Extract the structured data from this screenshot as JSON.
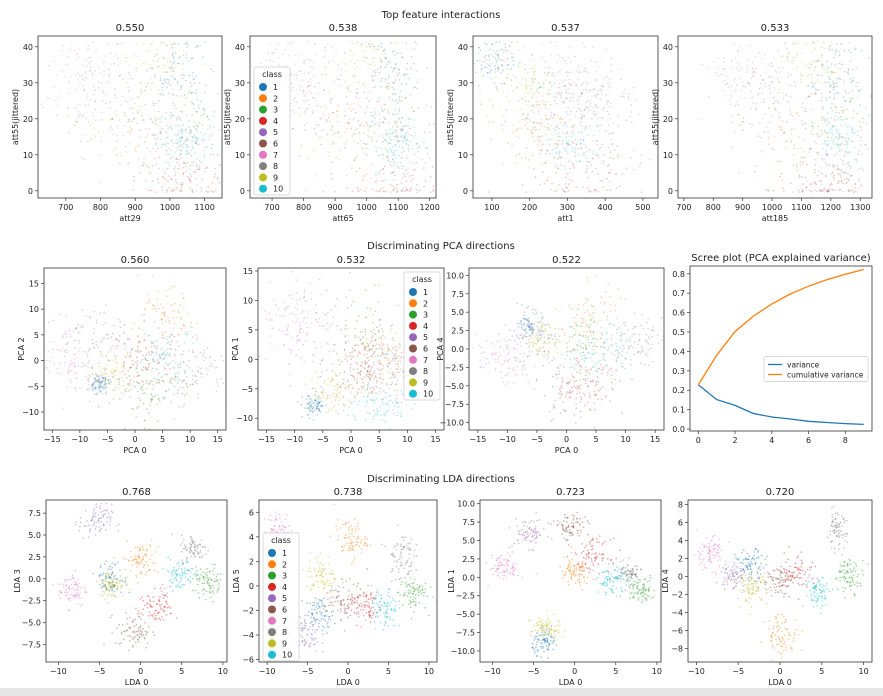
{
  "figure": {
    "suptitles": [
      "Top feature interactions",
      "Discriminating PCA directions",
      "Discriminating LDA directions"
    ]
  },
  "class_colors": [
    "#1f77b4",
    "#ff7f0e",
    "#2ca02c",
    "#d62728",
    "#9467bd",
    "#8c564b",
    "#e377c2",
    "#7f7f7f",
    "#bcbd22",
    "#17becf"
  ],
  "classes": [
    "1",
    "2",
    "3",
    "4",
    "5",
    "6",
    "7",
    "8",
    "9",
    "10"
  ],
  "legend_title": "class",
  "chart_data": [
    {
      "type": "scatter",
      "title": "0.550",
      "xlabel": "att29",
      "ylabel": "att55(jittered)",
      "xlim": [
        620,
        1150
      ],
      "ylim": [
        -2,
        43
      ],
      "xticks": [
        "700",
        "800",
        "900",
        "1000",
        "1100"
      ],
      "yticks": [
        "0",
        "10",
        "20",
        "30",
        "40"
      ],
      "legend": "none",
      "jitter_int_y": true,
      "alpha": 0.3,
      "clusters": [
        [
          1020,
          33,
          40,
          5
        ],
        [
          870,
          17,
          80,
          6
        ],
        [
          1050,
          20,
          50,
          8
        ],
        [
          1020,
          3,
          80,
          4
        ],
        [
          800,
          27,
          80,
          6
        ],
        [
          950,
          20,
          100,
          10
        ],
        [
          750,
          32,
          60,
          6
        ],
        [
          1050,
          10,
          50,
          8
        ],
        [
          960,
          35,
          60,
          5
        ],
        [
          1040,
          14,
          40,
          4
        ]
      ]
    },
    {
      "type": "scatter",
      "title": "0.538",
      "xlabel": "att65",
      "ylabel": "att55(jittered)",
      "xlim": [
        630,
        1220
      ],
      "ylim": [
        -2,
        43
      ],
      "xticks": [
        "700",
        "800",
        "900",
        "1000",
        "1100",
        "1200"
      ],
      "yticks": [
        "0",
        "10",
        "20",
        "30",
        "40"
      ],
      "legend": "center-left",
      "jitter_int_y": true,
      "alpha": 0.3,
      "clusters": [
        [
          1080,
          33,
          45,
          5
        ],
        [
          920,
          17,
          90,
          6
        ],
        [
          1100,
          20,
          55,
          8
        ],
        [
          1080,
          2,
          90,
          4
        ],
        [
          830,
          27,
          90,
          6
        ],
        [
          1000,
          20,
          110,
          10
        ],
        [
          780,
          32,
          60,
          6
        ],
        [
          1110,
          10,
          50,
          8
        ],
        [
          1010,
          35,
          60,
          5
        ],
        [
          1090,
          14,
          40,
          4
        ]
      ]
    },
    {
      "type": "scatter",
      "title": "0.537",
      "xlabel": "att1",
      "ylabel": "att55(jittered)",
      "xlim": [
        50,
        540
      ],
      "ylim": [
        -2,
        43
      ],
      "xticks": [
        "100",
        "200",
        "300",
        "400",
        "500"
      ],
      "yticks": [
        "0",
        "10",
        "20",
        "30",
        "40"
      ],
      "legend": "none",
      "jitter_int_y": true,
      "alpha": 0.3,
      "clusters": [
        [
          110,
          36,
          25,
          3
        ],
        [
          220,
          17,
          50,
          6
        ],
        [
          230,
          25,
          70,
          8
        ],
        [
          330,
          4,
          70,
          4
        ],
        [
          340,
          25,
          70,
          6
        ],
        [
          300,
          20,
          80,
          10
        ],
        [
          300,
          30,
          60,
          6
        ],
        [
          380,
          20,
          60,
          8
        ],
        [
          170,
          30,
          50,
          5
        ],
        [
          320,
          13,
          45,
          3
        ]
      ]
    },
    {
      "type": "scatter",
      "title": "0.533",
      "xlabel": "att185",
      "ylabel": "att55(jittered)",
      "xlim": [
        680,
        1340
      ],
      "ylim": [
        -2,
        43
      ],
      "xticks": [
        "700",
        "800",
        "900",
        "1000",
        "1100",
        "1200",
        "1300"
      ],
      "yticks": [
        "0",
        "10",
        "20",
        "30",
        "40"
      ],
      "legend": "none",
      "jitter_int_y": true,
      "alpha": 0.3,
      "clusters": [
        [
          1210,
          33,
          40,
          5
        ],
        [
          1080,
          17,
          80,
          6
        ],
        [
          1230,
          20,
          50,
          8
        ],
        [
          1200,
          2,
          80,
          4
        ],
        [
          950,
          27,
          90,
          6
        ],
        [
          1100,
          20,
          110,
          10
        ],
        [
          900,
          32,
          60,
          6
        ],
        [
          1240,
          8,
          45,
          8
        ],
        [
          1150,
          35,
          60,
          5
        ],
        [
          1220,
          14,
          40,
          4
        ]
      ]
    },
    {
      "type": "scatter",
      "title": "0.560",
      "xlabel": "PCA 0",
      "ylabel": "PCA 2",
      "xlim": [
        -16.5,
        16.5
      ],
      "ylim": [
        -13.5,
        18
      ],
      "xticks": [
        "−15",
        "−10",
        "−5",
        "0",
        "5",
        "10",
        "15"
      ],
      "yticks": [
        "−10",
        "−5",
        "0",
        "5",
        "10",
        "15"
      ],
      "legend": "none",
      "alpha": 0.35,
      "clusters": [
        [
          -6.5,
          -4.5,
          1,
          1
        ],
        [
          5,
          8,
          3,
          3
        ],
        [
          3,
          -6,
          3,
          3
        ],
        [
          2,
          1,
          4,
          3
        ],
        [
          -8,
          4,
          4,
          4
        ],
        [
          0,
          -2,
          5,
          4
        ],
        [
          -12,
          0,
          2.5,
          4
        ],
        [
          11,
          -2,
          3,
          2.5
        ],
        [
          -4,
          -2.5,
          2,
          2
        ],
        [
          6,
          1,
          3,
          3
        ]
      ]
    },
    {
      "type": "scatter",
      "title": "0.532",
      "xlabel": "PCA 0",
      "ylabel": "PCA 1",
      "xlim": [
        -16.5,
        16.5
      ],
      "ylim": [
        -12,
        15.5
      ],
      "xticks": [
        "−15",
        "−10",
        "−5",
        "0",
        "5",
        "10",
        "15"
      ],
      "yticks": [
        "−10",
        "−5",
        "0",
        "5",
        "10",
        "15"
      ],
      "legend": "upper-right",
      "alpha": 0.35,
      "clusters": [
        [
          -6.5,
          -8,
          1,
          1
        ],
        [
          5,
          0,
          3,
          3
        ],
        [
          4,
          3,
          3,
          4
        ],
        [
          4,
          -1,
          3,
          3
        ],
        [
          -6,
          5,
          4,
          4
        ],
        [
          1,
          -2,
          4,
          3
        ],
        [
          -11,
          6,
          3,
          3
        ],
        [
          7,
          0,
          3,
          3
        ],
        [
          -4,
          -5.5,
          2,
          2
        ],
        [
          5,
          -8,
          3,
          1.5
        ]
      ]
    },
    {
      "type": "scatter",
      "title": "0.522",
      "xlabel": "PCA 0",
      "ylabel": "PCA 4",
      "xlim": [
        -16.5,
        16.5
      ],
      "ylim": [
        -11,
        11
      ],
      "xticks": [
        "−15",
        "−10",
        "−5",
        "0",
        "5",
        "10",
        "15"
      ],
      "yticks": [
        "−10.0",
        "−7.5",
        "−5.0",
        "−2.5",
        "0.0",
        "2.5",
        "5.0",
        "7.5",
        "10.0"
      ],
      "legend": "none",
      "alpha": 0.35,
      "clusters": [
        [
          -6,
          3,
          1,
          1
        ],
        [
          4,
          4,
          2.5,
          2.5
        ],
        [
          3,
          1,
          2.5,
          2.5
        ],
        [
          4,
          -5,
          3,
          2
        ],
        [
          -6,
          1,
          3,
          2
        ],
        [
          0,
          -5,
          3,
          2.5
        ],
        [
          -11,
          -1.5,
          2,
          1.5
        ],
        [
          12,
          1,
          2,
          1.5
        ],
        [
          -4,
          1.5,
          1.5,
          1.5
        ],
        [
          5,
          0,
          3,
          2
        ]
      ]
    },
    {
      "type": "line",
      "title": "Scree plot (PCA explained variance)",
      "xlabel": "",
      "ylabel": "",
      "xlim": [
        -0.45,
        9.45
      ],
      "ylim": [
        -0.01,
        0.84
      ],
      "xticks": [
        "0",
        "2",
        "4",
        "6",
        "8"
      ],
      "yticks": [
        "0.0",
        "0.1",
        "0.2",
        "0.3",
        "0.4",
        "0.5",
        "0.6",
        "0.7",
        "0.8"
      ],
      "legend": "center-right",
      "x": [
        0,
        1,
        2,
        3,
        4,
        5,
        6,
        7,
        8,
        9
      ],
      "series": [
        {
          "name": "variance",
          "color": "#1f77b4",
          "values": [
            0.228,
            0.152,
            0.122,
            0.08,
            0.062,
            0.052,
            0.04,
            0.034,
            0.028,
            0.024
          ]
        },
        {
          "name": "cumulative variance",
          "color": "#ff7f0e",
          "values": [
            0.228,
            0.38,
            0.502,
            0.582,
            0.644,
            0.696,
            0.736,
            0.77,
            0.798,
            0.822
          ]
        }
      ]
    },
    {
      "type": "scatter",
      "title": "0.768",
      "xlabel": "LDA 0",
      "ylabel": "LDA 3",
      "xlim": [
        -11.5,
        10.5
      ],
      "ylim": [
        -9.5,
        9
      ],
      "xticks": [
        "−10",
        "−5",
        "0",
        "5",
        "10"
      ],
      "yticks": [
        "−7.5",
        "−5.0",
        "−2.5",
        "0.0",
        "2.5",
        "5.0",
        "7.5"
      ],
      "legend": "none",
      "alpha": 0.45,
      "clusters": [
        [
          -3.5,
          0,
          0.9,
          0.9
        ],
        [
          0,
          2.2,
          1.1,
          1.1
        ],
        [
          8.3,
          -0.5,
          0.9,
          0.9
        ],
        [
          2,
          -3.3,
          1.1,
          1.1
        ],
        [
          -5.5,
          6.5,
          1,
          1
        ],
        [
          -0.8,
          -6,
          1.1,
          1
        ],
        [
          -8.3,
          -1.2,
          0.9,
          1
        ],
        [
          6.5,
          3.4,
          0.8,
          0.8
        ],
        [
          -3.5,
          -0.6,
          0.8,
          0.8
        ],
        [
          4.6,
          0.5,
          0.9,
          0.9
        ]
      ]
    },
    {
      "type": "scatter",
      "title": "0.738",
      "xlabel": "LDA 0",
      "ylabel": "LDA 5",
      "xlim": [
        -11,
        11
      ],
      "ylim": [
        -6.2,
        7
      ],
      "xticks": [
        "−10",
        "−5",
        "0",
        "5",
        "10"
      ],
      "yticks": [
        "−6",
        "−4",
        "−2",
        "0",
        "2",
        "4",
        "6"
      ],
      "legend": "center-left",
      "alpha": 0.45,
      "clusters": [
        [
          -3.5,
          -2.3,
          0.9,
          0.7
        ],
        [
          0.3,
          3.8,
          1,
          0.8
        ],
        [
          8,
          -0.6,
          0.9,
          0.7
        ],
        [
          2,
          -1.5,
          1.1,
          0.8
        ],
        [
          -5.5,
          -4,
          1,
          0.8
        ],
        [
          -0.5,
          -1.2,
          1.1,
          0.8
        ],
        [
          -8.5,
          4.5,
          0.9,
          0.7
        ],
        [
          6.5,
          2.5,
          0.8,
          1
        ],
        [
          -3.2,
          0.8,
          1,
          0.9
        ],
        [
          4.5,
          -2,
          0.8,
          0.9
        ]
      ]
    },
    {
      "type": "scatter",
      "title": "0.723",
      "xlabel": "LDA 0",
      "ylabel": "LDA 1",
      "xlim": [
        -11.5,
        10.5
      ],
      "ylim": [
        -11.5,
        10.5
      ],
      "xticks": [
        "−10",
        "−5",
        "0",
        "5",
        "10"
      ],
      "yticks": [
        "−10.0",
        "−7.5",
        "−5.0",
        "−2.5",
        "0.0",
        "2.5",
        "5.0",
        "7.5",
        "10.0"
      ],
      "legend": "none",
      "alpha": 0.45,
      "clusters": [
        [
          -3.5,
          -8.8,
          0.8,
          0.8
        ],
        [
          0,
          0.5,
          1,
          1.1
        ],
        [
          8,
          -1.5,
          0.9,
          0.9
        ],
        [
          2.2,
          3,
          1.1,
          1.1
        ],
        [
          -5.5,
          6,
          1,
          1
        ],
        [
          -0.5,
          6.8,
          1,
          1
        ],
        [
          -8.5,
          1.3,
          0.9,
          0.9
        ],
        [
          6.5,
          0.5,
          0.8,
          0.8
        ],
        [
          -3.5,
          -7,
          0.9,
          0.9
        ],
        [
          4.6,
          -0.4,
          0.9,
          0.9
        ]
      ]
    },
    {
      "type": "scatter",
      "title": "0.720",
      "xlabel": "LDA 0",
      "ylabel": "LDA 4",
      "xlim": [
        -11,
        11
      ],
      "ylim": [
        -9.5,
        8.5
      ],
      "xticks": [
        "−10",
        "−5",
        "0",
        "5",
        "10"
      ],
      "yticks": [
        "−8",
        "−6",
        "−4",
        "−2",
        "0",
        "2",
        "4",
        "6",
        "8"
      ],
      "legend": "none",
      "alpha": 0.45,
      "clusters": [
        [
          -3.5,
          1.3,
          0.9,
          0.8
        ],
        [
          0.3,
          -6.5,
          1,
          1.2
        ],
        [
          8.3,
          0.1,
          0.9,
          0.9
        ],
        [
          2,
          0.7,
          1.1,
          1.1
        ],
        [
          -5.5,
          0,
          0.9,
          0.8
        ],
        [
          -0.5,
          -0.5,
          1,
          0.8
        ],
        [
          -8.5,
          2.6,
          1,
          0.9
        ],
        [
          6.8,
          5,
          0.6,
          1
        ],
        [
          -3.3,
          -1.2,
          0.9,
          0.9
        ],
        [
          4.6,
          -1.7,
          0.8,
          0.9
        ]
      ]
    }
  ]
}
